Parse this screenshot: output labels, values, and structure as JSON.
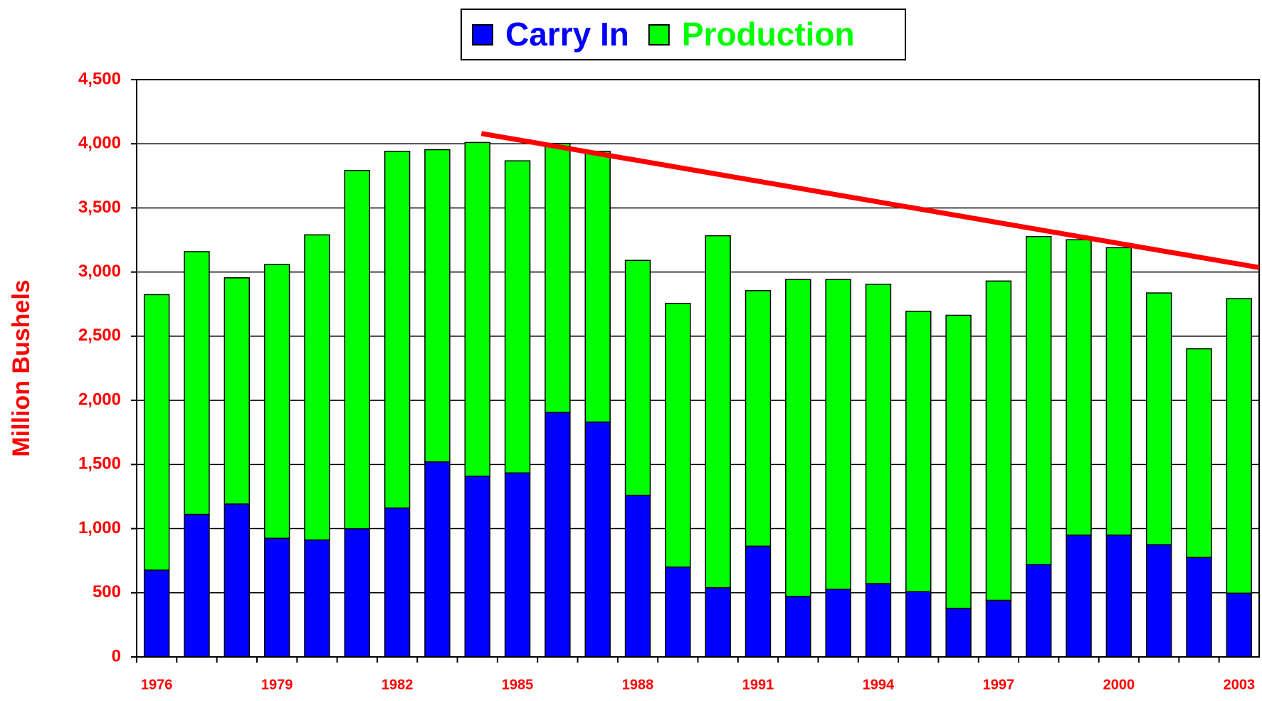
{
  "chart_data": {
    "type": "stacked_bar",
    "y_axis_label": "Million Bushels",
    "categories": [
      "1976",
      null,
      null,
      "1979",
      null,
      null,
      "1982",
      null,
      null,
      "1985",
      null,
      null,
      "1988",
      null,
      null,
      "1991",
      null,
      null,
      "1994",
      null,
      null,
      "1997",
      null,
      null,
      "2000",
      null,
      null,
      "2003"
    ],
    "series": [
      {
        "name": "Carry In",
        "color": "#0000ff",
        "values": [
          677,
          1111,
          1192,
          925,
          912,
          999,
          1161,
          1521,
          1409,
          1434,
          1906,
          1831,
          1260,
          701,
          540,
          863,
          472,
          528,
          571,
          509,
          379,
          441,
          720,
          950,
          950,
          875,
          776,
          497
        ]
      },
      {
        "name": "Production",
        "color": "#00ff00",
        "values": [
          2147,
          2048,
          1763,
          2135,
          2378,
          2793,
          2780,
          2433,
          2601,
          2433,
          2097,
          2110,
          1831,
          2055,
          2743,
          1992,
          2470,
          2414,
          2334,
          2185,
          2284,
          2489,
          2557,
          2302,
          2240,
          1962,
          1626,
          2296
        ]
      }
    ],
    "xlim": [
      1975.5,
      2003.5
    ],
    "ylim": [
      0,
      4500
    ],
    "yticks": [
      0,
      500,
      {
        "value": 1000,
        "label": "1,000"
      },
      {
        "value": 1500,
        "label": "1,500"
      },
      {
        "value": 2000,
        "label": "2,000"
      },
      {
        "value": 2500,
        "label": "2,500"
      },
      {
        "value": 3000,
        "label": "3,000"
      },
      {
        "value": 3500,
        "label": "3,500"
      },
      {
        "value": 4000,
        "label": "4,000"
      },
      {
        "value": 4500,
        "label": "4,500"
      }
    ],
    "grid": true,
    "legend": "top",
    "trend_line": {
      "color": "#ff0000",
      "x": [
        1984.1,
        2003.5
      ],
      "y": [
        4080,
        3035
      ]
    }
  }
}
